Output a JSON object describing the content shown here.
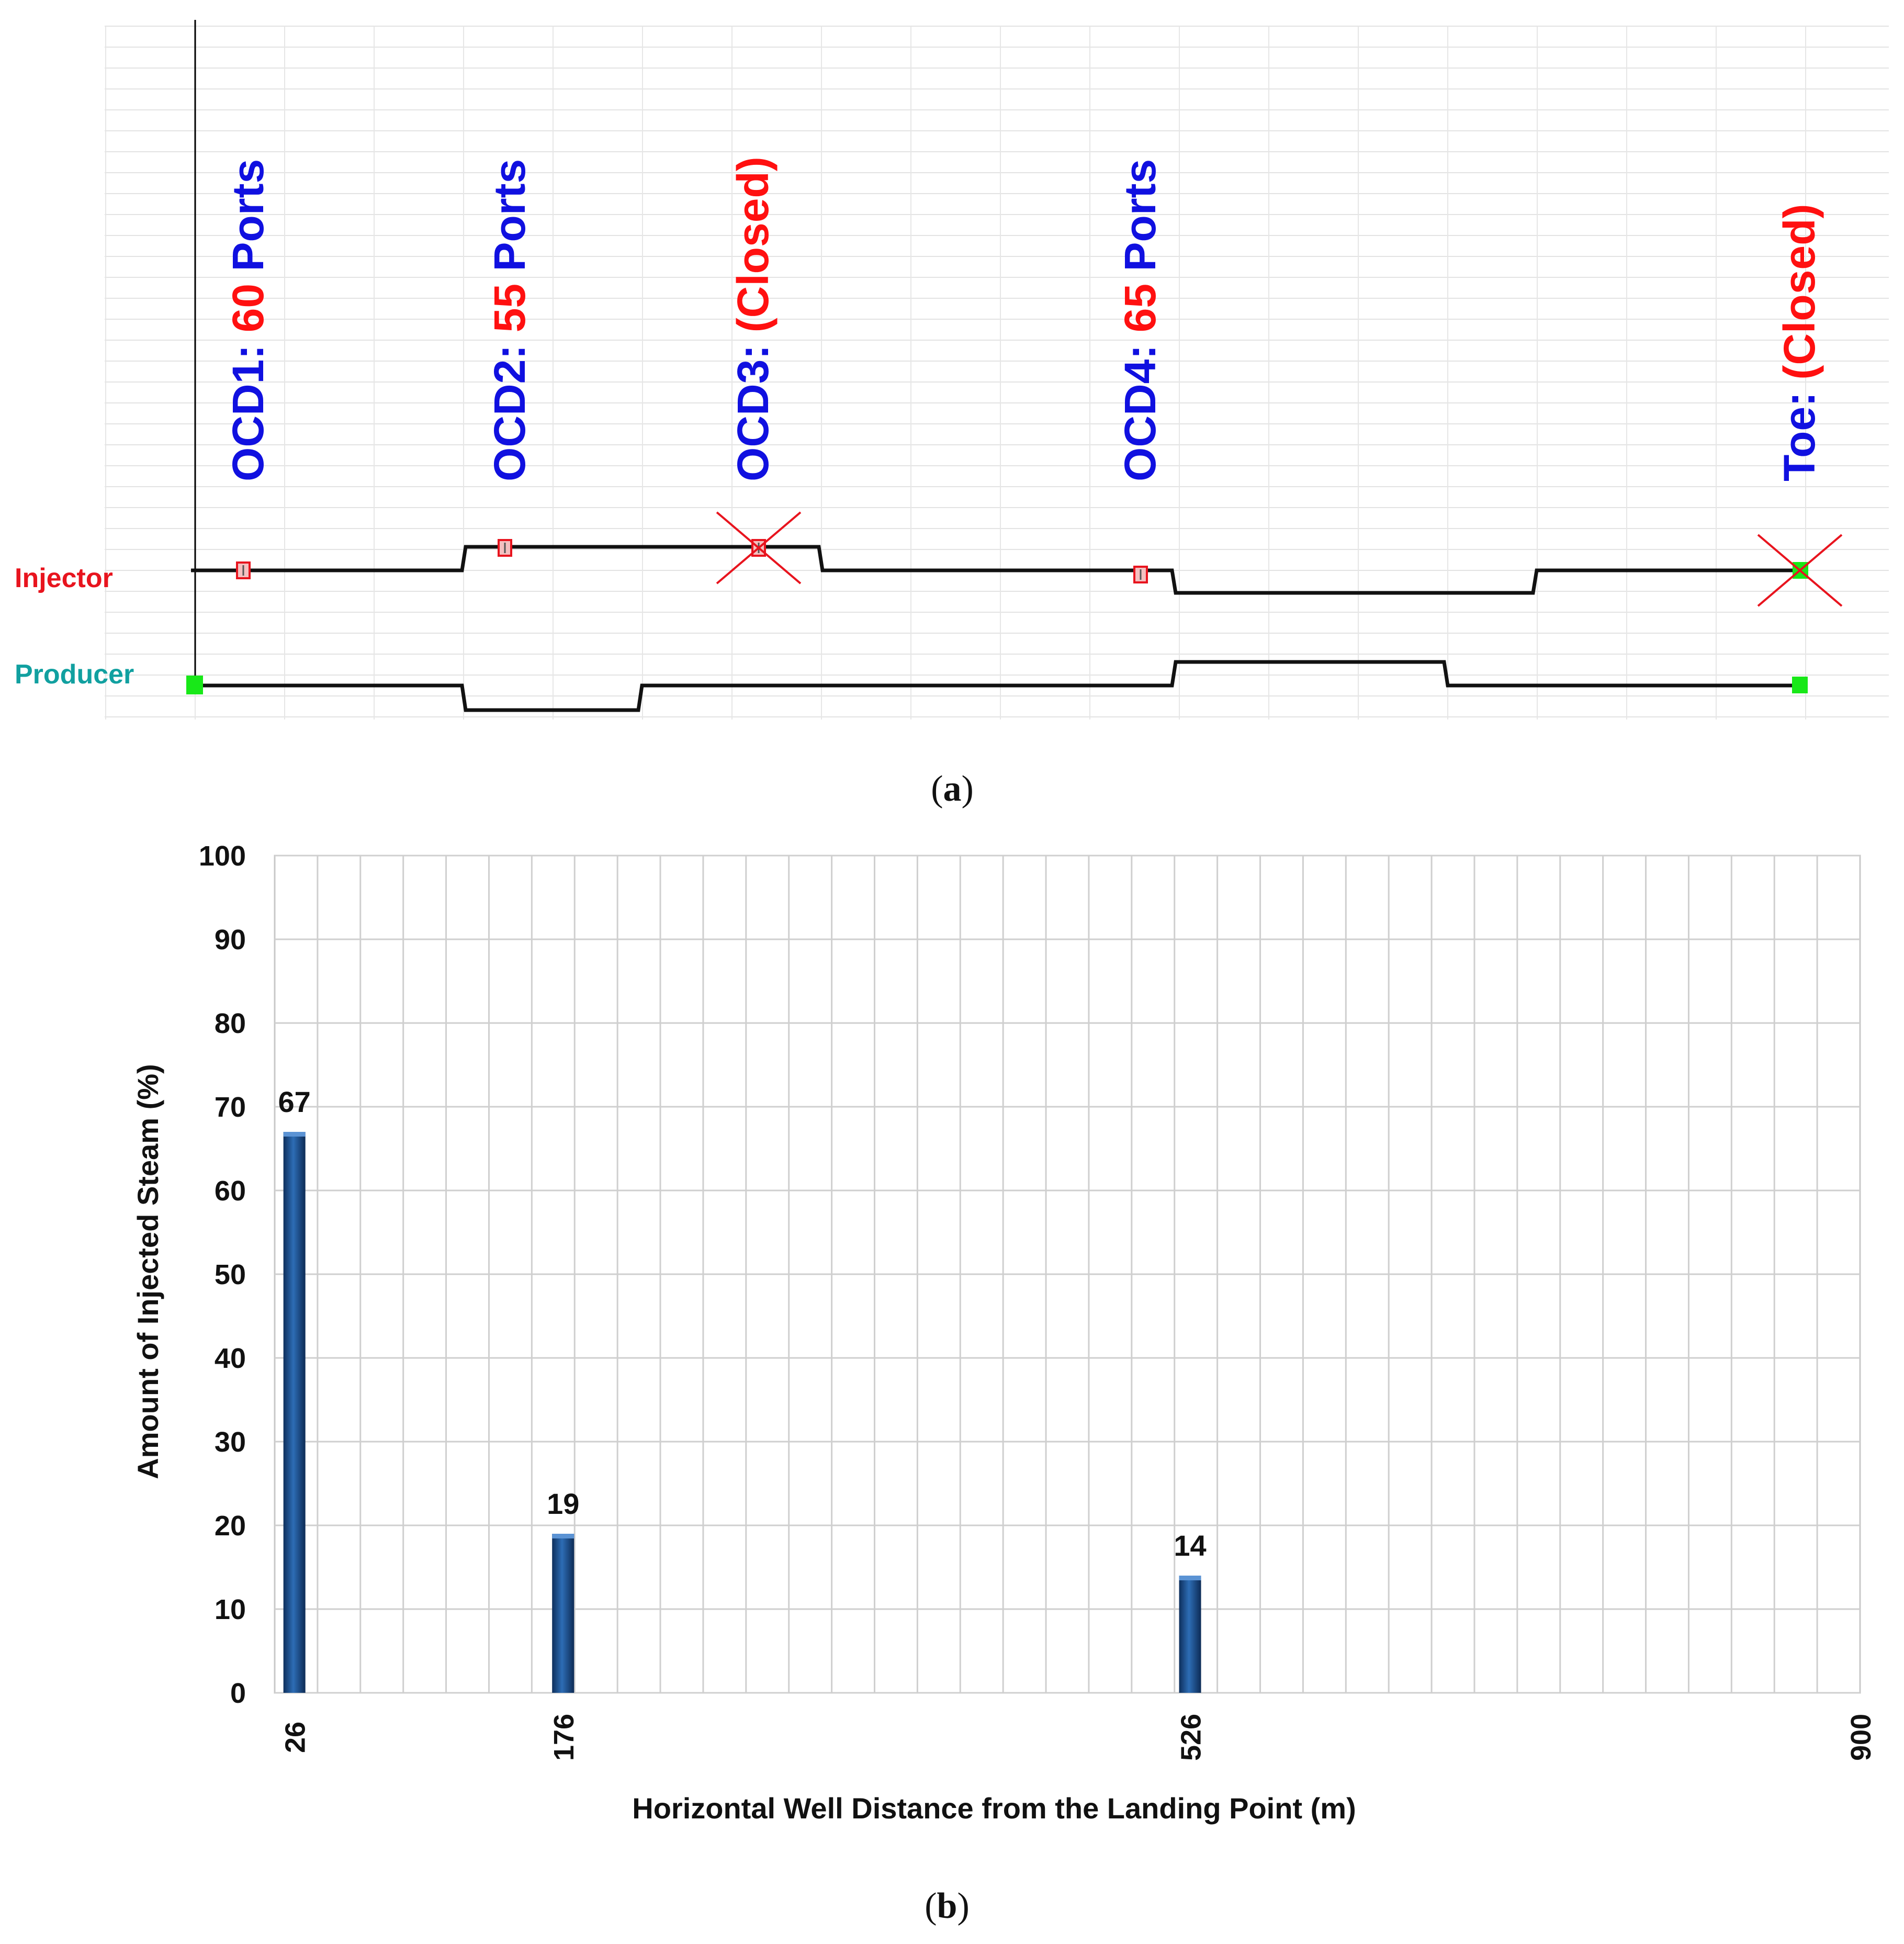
{
  "panel_a": {
    "caption": {
      "open": "(",
      "letter": "a",
      "close": ")"
    },
    "wells": {
      "injector": "Injector",
      "producer": "Producer"
    },
    "devices": [
      {
        "id": "ocd1",
        "prefix": "OCD1: ",
        "value": "60",
        "suffix": " Ports",
        "status": "open"
      },
      {
        "id": "ocd2",
        "prefix": "OCD2: ",
        "value": "55",
        "suffix": " Ports",
        "status": "open"
      },
      {
        "id": "ocd3",
        "prefix": "OCD3: ",
        "value": "(Closed)",
        "suffix": "",
        "status": "closed"
      },
      {
        "id": "ocd4",
        "prefix": "OCD4: ",
        "value": "65",
        "suffix": " Ports",
        "status": "open"
      },
      {
        "id": "toe",
        "prefix": "Toe: ",
        "value": "(Closed)",
        "suffix": "",
        "status": "closed"
      }
    ],
    "colors": {
      "label_blue": "#1010e0",
      "value_red": "#ff1010",
      "injector_red": "#e8141e",
      "producer_teal": "#11a0a0",
      "marker_green": "#18e818"
    }
  },
  "panel_b": {
    "caption": {
      "open": "(",
      "letter": "b",
      "close": ")"
    },
    "chart_data": {
      "type": "bar",
      "x": [
        26,
        176,
        526
      ],
      "values": [
        67,
        19,
        14
      ],
      "data_labels": [
        "67",
        "19",
        "14"
      ],
      "xlim": [
        15,
        900
      ],
      "ylim": [
        0,
        100
      ],
      "y_ticks": [
        0,
        10,
        20,
        30,
        40,
        50,
        60,
        70,
        80,
        90,
        100
      ],
      "x_tick_labels": [
        "26",
        "176",
        "526",
        "900"
      ],
      "x_tick_values": [
        26,
        176,
        526,
        900
      ],
      "xlabel": "Horizontal Well Distance from the Landing Point (m)",
      "ylabel": "Amount of Injected  Steam (%)",
      "grid": true,
      "bar_color": "#1f5a99"
    }
  }
}
